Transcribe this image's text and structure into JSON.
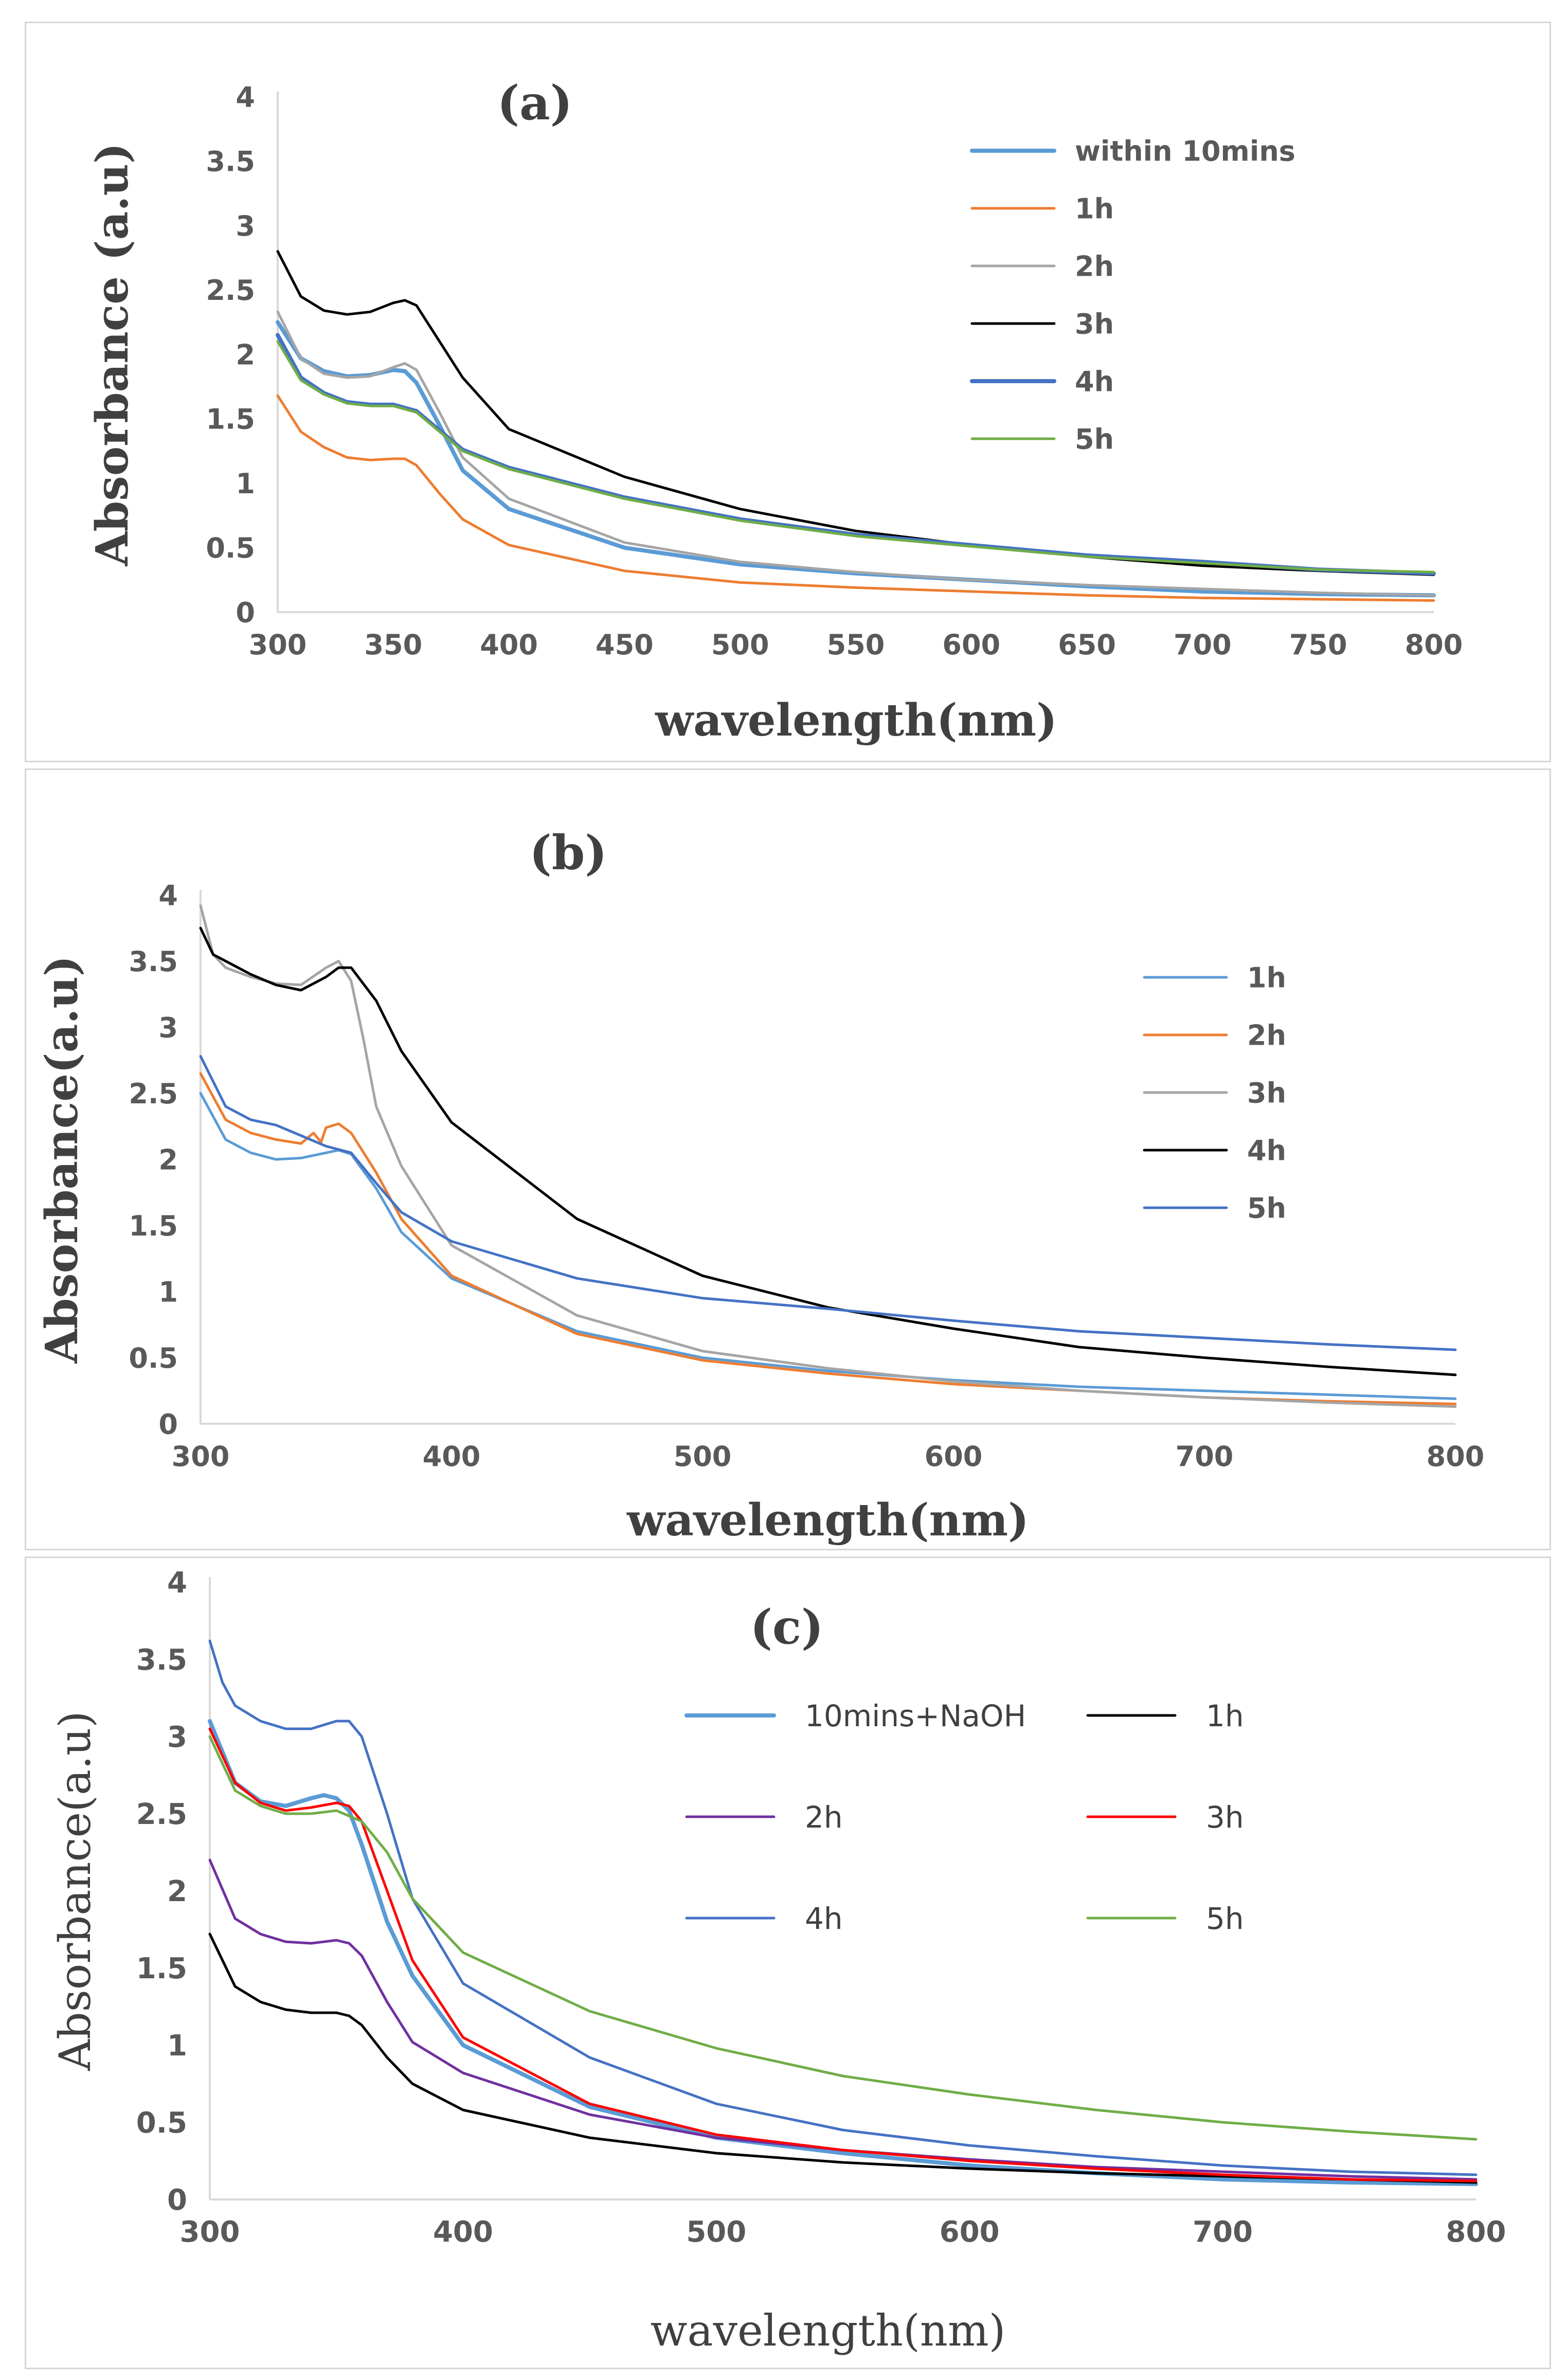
{
  "chart_data": [
    {
      "type": "line",
      "panel_label": "(a)",
      "xlabel": "wavelength(nm)",
      "ylabel": "Absorbance (a.u)",
      "xlim": [
        300,
        800
      ],
      "ylim": [
        0,
        4
      ],
      "x_ticks": [
        "300",
        "350",
        "400",
        "450",
        "500",
        "550",
        "600",
        "650",
        "700",
        "750",
        "800"
      ],
      "y_ticks": [
        "0",
        "0.5",
        "1",
        "1.5",
        "2",
        "2.5",
        "3",
        "3.5",
        "4"
      ],
      "grid": false,
      "legend_position": "top-right",
      "series": [
        {
          "name": "within 10mins",
          "color": "#5b9bd5",
          "width": 8,
          "x": [
            300,
            310,
            320,
            330,
            340,
            350,
            355,
            360,
            370,
            380,
            400,
            450,
            500,
            550,
            600,
            650,
            700,
            750,
            800
          ],
          "y": [
            2.25,
            1.97,
            1.87,
            1.83,
            1.84,
            1.88,
            1.87,
            1.78,
            1.45,
            1.1,
            0.8,
            0.5,
            0.37,
            0.3,
            0.25,
            0.2,
            0.16,
            0.14,
            0.13
          ]
        },
        {
          "name": "1h",
          "color": "#ed7d31",
          "width": 5,
          "x": [
            300,
            310,
            320,
            330,
            340,
            350,
            355,
            360,
            370,
            380,
            400,
            450,
            500,
            550,
            600,
            650,
            700,
            750,
            800
          ],
          "y": [
            1.68,
            1.4,
            1.28,
            1.2,
            1.18,
            1.19,
            1.19,
            1.14,
            0.92,
            0.72,
            0.52,
            0.32,
            0.23,
            0.19,
            0.16,
            0.13,
            0.11,
            0.1,
            0.09
          ]
        },
        {
          "name": "2h",
          "color": "#a5a5a5",
          "width": 5,
          "x": [
            300,
            310,
            320,
            330,
            340,
            350,
            355,
            360,
            370,
            380,
            400,
            450,
            500,
            550,
            600,
            650,
            700,
            750,
            800
          ],
          "y": [
            2.33,
            1.97,
            1.85,
            1.82,
            1.83,
            1.9,
            1.93,
            1.88,
            1.55,
            1.2,
            0.88,
            0.54,
            0.39,
            0.31,
            0.25,
            0.21,
            0.18,
            0.15,
            0.13
          ]
        },
        {
          "name": "3h",
          "color": "#000000",
          "width": 5,
          "x": [
            300,
            310,
            320,
            330,
            340,
            350,
            355,
            360,
            370,
            380,
            400,
            450,
            500,
            550,
            600,
            650,
            700,
            750,
            800
          ],
          "y": [
            2.8,
            2.45,
            2.34,
            2.31,
            2.33,
            2.4,
            2.42,
            2.38,
            2.1,
            1.82,
            1.42,
            1.05,
            0.8,
            0.63,
            0.52,
            0.43,
            0.36,
            0.32,
            0.29
          ]
        },
        {
          "name": "4h",
          "color": "#4472c4",
          "width": 8,
          "x": [
            300,
            310,
            320,
            330,
            340,
            350,
            360,
            380,
            400,
            450,
            500,
            550,
            600,
            650,
            700,
            750,
            800
          ],
          "y": [
            2.15,
            1.82,
            1.7,
            1.63,
            1.61,
            1.61,
            1.56,
            1.26,
            1.12,
            0.89,
            0.72,
            0.6,
            0.52,
            0.44,
            0.39,
            0.33,
            0.3
          ]
        },
        {
          "name": "5h",
          "color": "#70ad47",
          "width": 5,
          "x": [
            300,
            310,
            320,
            330,
            340,
            350,
            360,
            380,
            400,
            450,
            500,
            550,
            600,
            650,
            700,
            750,
            800
          ],
          "y": [
            2.1,
            1.8,
            1.69,
            1.62,
            1.6,
            1.6,
            1.55,
            1.25,
            1.11,
            0.88,
            0.71,
            0.59,
            0.51,
            0.43,
            0.38,
            0.33,
            0.31
          ]
        }
      ]
    },
    {
      "type": "line",
      "panel_label": "(b)",
      "xlabel": "wavelength(nm)",
      "ylabel": "Absorbance(a.u)",
      "xlim": [
        300,
        800
      ],
      "ylim": [
        0,
        4
      ],
      "x_ticks": [
        "300",
        "400",
        "500",
        "600",
        "700",
        "800"
      ],
      "y_ticks": [
        "0",
        "0.5",
        "1",
        "1.5",
        "2",
        "2.5",
        "3",
        "3.5",
        "4"
      ],
      "grid": false,
      "legend_position": "right",
      "series": [
        {
          "name": "1h",
          "color": "#5b9bd5",
          "width": 5,
          "x": [
            300,
            310,
            320,
            330,
            340,
            350,
            355,
            360,
            370,
            380,
            400,
            450,
            500,
            550,
            600,
            650,
            700,
            750,
            800
          ],
          "y": [
            2.5,
            2.15,
            2.05,
            2.0,
            2.01,
            2.05,
            2.07,
            2.04,
            1.78,
            1.45,
            1.1,
            0.7,
            0.5,
            0.4,
            0.33,
            0.28,
            0.25,
            0.22,
            0.19
          ]
        },
        {
          "name": "2h",
          "color": "#ed7d31",
          "width": 5,
          "x": [
            300,
            310,
            320,
            330,
            340,
            345,
            348,
            350,
            355,
            360,
            370,
            380,
            400,
            450,
            500,
            550,
            600,
            650,
            700,
            750,
            800
          ],
          "y": [
            2.65,
            2.3,
            2.2,
            2.15,
            2.12,
            2.2,
            2.13,
            2.24,
            2.27,
            2.2,
            1.9,
            1.55,
            1.12,
            0.68,
            0.48,
            0.38,
            0.3,
            0.25,
            0.2,
            0.17,
            0.15
          ]
        },
        {
          "name": "3h",
          "color": "#a5a5a5",
          "width": 5,
          "x": [
            300,
            305,
            310,
            320,
            330,
            340,
            350,
            355,
            360,
            365,
            370,
            380,
            400,
            450,
            500,
            550,
            600,
            650,
            700,
            750,
            800
          ],
          "y": [
            3.92,
            3.55,
            3.45,
            3.38,
            3.33,
            3.32,
            3.45,
            3.5,
            3.35,
            2.9,
            2.4,
            1.95,
            1.35,
            0.82,
            0.55,
            0.42,
            0.32,
            0.25,
            0.2,
            0.16,
            0.13
          ]
        },
        {
          "name": "4h",
          "color": "#000000",
          "width": 5,
          "x": [
            300,
            305,
            310,
            320,
            330,
            340,
            350,
            355,
            360,
            370,
            380,
            400,
            450,
            500,
            550,
            600,
            650,
            700,
            750,
            800
          ],
          "y": [
            3.75,
            3.55,
            3.5,
            3.4,
            3.32,
            3.28,
            3.38,
            3.45,
            3.45,
            3.2,
            2.82,
            2.28,
            1.55,
            1.12,
            0.88,
            0.72,
            0.58,
            0.5,
            0.43,
            0.37
          ]
        },
        {
          "name": "5h",
          "color": "#4472c4",
          "width": 5,
          "x": [
            300,
            310,
            320,
            330,
            340,
            350,
            360,
            370,
            380,
            400,
            450,
            500,
            550,
            600,
            650,
            700,
            750,
            800
          ],
          "y": [
            2.78,
            2.4,
            2.3,
            2.26,
            2.18,
            2.1,
            2.05,
            1.82,
            1.6,
            1.38,
            1.1,
            0.95,
            0.87,
            0.78,
            0.7,
            0.65,
            0.6,
            0.56
          ]
        }
      ]
    },
    {
      "type": "line",
      "panel_label": "(c)",
      "xlabel": "wavelength(nm)",
      "ylabel": "Absorbance(a.u)",
      "xlim": [
        300,
        800
      ],
      "ylim": [
        0,
        4
      ],
      "x_ticks": [
        "300",
        "400",
        "500",
        "600",
        "700",
        "800"
      ],
      "y_ticks": [
        "0",
        "0.5",
        "1",
        "1.5",
        "2",
        "2.5",
        "3",
        "3.5",
        "4"
      ],
      "grid": false,
      "legend_position": "top-right",
      "series": [
        {
          "name": "10mins+NaOH",
          "color": "#5b9bd5",
          "width": 8,
          "x": [
            300,
            310,
            320,
            330,
            340,
            345,
            350,
            355,
            360,
            370,
            380,
            400,
            450,
            500,
            550,
            600,
            650,
            700,
            750,
            800
          ],
          "y": [
            3.1,
            2.7,
            2.58,
            2.55,
            2.6,
            2.62,
            2.6,
            2.52,
            2.3,
            1.8,
            1.45,
            1.0,
            0.6,
            0.4,
            0.3,
            0.22,
            0.17,
            0.13,
            0.11,
            0.1
          ]
        },
        {
          "name": "1h",
          "color": "#000000",
          "width": 5,
          "x": [
            300,
            310,
            320,
            330,
            340,
            350,
            355,
            360,
            370,
            380,
            400,
            450,
            500,
            550,
            600,
            650,
            700,
            750,
            800
          ],
          "y": [
            1.72,
            1.38,
            1.28,
            1.23,
            1.21,
            1.21,
            1.19,
            1.13,
            0.92,
            0.75,
            0.58,
            0.4,
            0.3,
            0.24,
            0.2,
            0.17,
            0.15,
            0.13,
            0.11
          ]
        },
        {
          "name": "2h",
          "color": "#7030a0",
          "width": 5,
          "x": [
            300,
            310,
            320,
            330,
            340,
            350,
            355,
            360,
            370,
            380,
            400,
            450,
            500,
            550,
            600,
            650,
            700,
            750,
            800
          ],
          "y": [
            2.2,
            1.82,
            1.72,
            1.67,
            1.66,
            1.68,
            1.66,
            1.58,
            1.28,
            1.02,
            0.82,
            0.55,
            0.4,
            0.32,
            0.26,
            0.21,
            0.18,
            0.15,
            0.13
          ]
        },
        {
          "name": "3h",
          "color": "#ff0000",
          "width": 5,
          "x": [
            300,
            310,
            320,
            330,
            340,
            350,
            355,
            360,
            370,
            380,
            400,
            450,
            500,
            550,
            600,
            650,
            700,
            750,
            800
          ],
          "y": [
            3.05,
            2.7,
            2.57,
            2.52,
            2.54,
            2.57,
            2.55,
            2.45,
            2.0,
            1.55,
            1.05,
            0.62,
            0.42,
            0.32,
            0.25,
            0.2,
            0.16,
            0.13,
            0.12
          ]
        },
        {
          "name": "4h",
          "color": "#4472c4",
          "width": 5,
          "x": [
            300,
            305,
            310,
            320,
            330,
            340,
            350,
            355,
            360,
            370,
            380,
            400,
            450,
            500,
            550,
            600,
            650,
            700,
            750,
            800
          ],
          "y": [
            3.62,
            3.35,
            3.2,
            3.1,
            3.05,
            3.05,
            3.1,
            3.1,
            3.0,
            2.5,
            1.95,
            1.4,
            0.92,
            0.62,
            0.45,
            0.35,
            0.28,
            0.22,
            0.18,
            0.16
          ]
        },
        {
          "name": "5h",
          "color": "#70ad47",
          "width": 5,
          "x": [
            300,
            310,
            320,
            330,
            340,
            350,
            360,
            370,
            380,
            400,
            450,
            500,
            550,
            600,
            650,
            700,
            750,
            800
          ],
          "y": [
            3.0,
            2.65,
            2.55,
            2.5,
            2.5,
            2.52,
            2.45,
            2.25,
            1.95,
            1.6,
            1.22,
            0.98,
            0.8,
            0.68,
            0.58,
            0.5,
            0.44,
            0.39
          ]
        }
      ]
    }
  ]
}
